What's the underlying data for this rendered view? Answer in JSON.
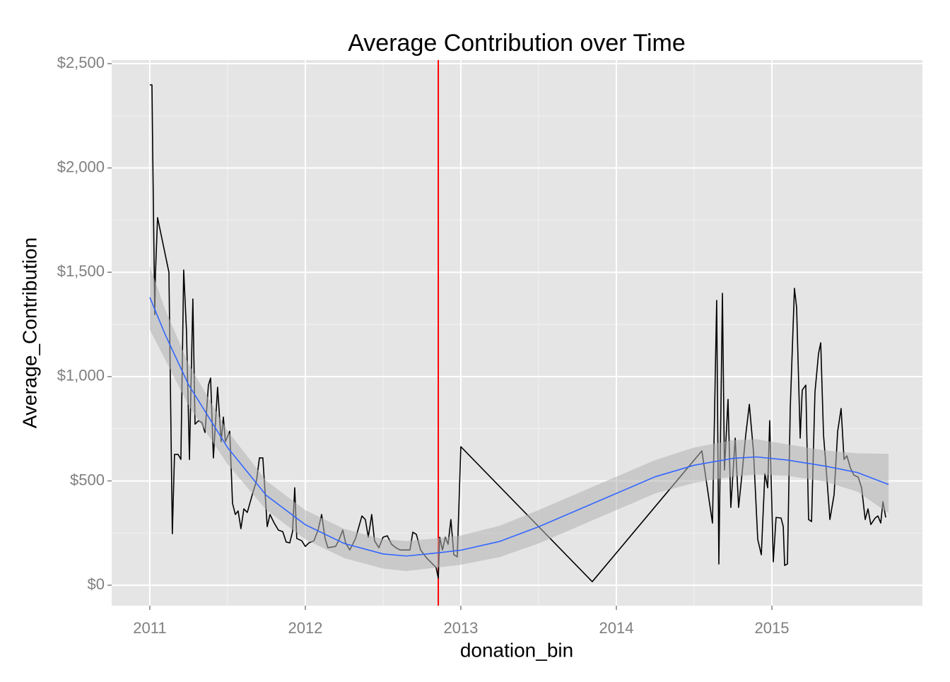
{
  "chart_data": {
    "type": "line",
    "title": "Average Contribution over Time",
    "x_label": "donation_bin",
    "y_label": "Average_Contribution",
    "xlim": [
      2010.755,
      2015.968
    ],
    "xticks": [
      2011,
      2012,
      2013,
      2014,
      2015
    ],
    "ylim": [
      -98,
      2517
    ],
    "yticks": [
      {
        "value": 0,
        "label": "$0"
      },
      {
        "value": 500,
        "label": "$500"
      },
      {
        "value": 1000,
        "label": "$1,000"
      },
      {
        "value": 1500,
        "label": "$1,500"
      },
      {
        "value": 2000,
        "label": "$2,000"
      },
      {
        "value": 2500,
        "label": "$2,500"
      }
    ],
    "grid": true,
    "series": [
      {
        "color": "#000000",
        "x": [
          2011.0,
          2011.014,
          2011.018,
          2011.032,
          2011.036,
          2011.05,
          2011.123,
          2011.145,
          2011.159,
          2011.182,
          2011.2,
          2011.218,
          2011.236,
          2011.255,
          2011.277,
          2011.291,
          2011.314,
          2011.336,
          2011.355,
          2011.377,
          2011.391,
          2011.409,
          2011.436,
          2011.459,
          2011.473,
          2011.486,
          2011.514,
          2011.532,
          2011.55,
          2011.568,
          2011.586,
          2011.605,
          2011.627,
          2011.659,
          2011.686,
          2011.705,
          2011.727,
          2011.755,
          2011.773,
          2011.8,
          2011.827,
          2011.855,
          2011.877,
          2011.9,
          2011.918,
          2011.932,
          2011.945,
          2011.977,
          2012.0,
          2012.023,
          2012.055,
          2012.082,
          2012.105,
          2012.127,
          2012.145,
          2012.195,
          2012.218,
          2012.241,
          2012.259,
          2012.286,
          2012.323,
          2012.364,
          2012.386,
          2012.405,
          2012.427,
          2012.445,
          2012.473,
          2012.5,
          2012.527,
          2012.555,
          2012.582,
          2012.609,
          2012.65,
          2012.673,
          2012.691,
          2012.714,
          2012.741,
          2012.782,
          2012.818,
          2012.841,
          2012.855,
          2012.864,
          2012.882,
          2012.9,
          2012.918,
          2012.936,
          2012.955,
          2012.977,
          2013.0,
          2013.845,
          2014.55,
          2014.618,
          2014.645,
          2014.659,
          2014.682,
          2014.695,
          2014.718,
          2014.736,
          2014.764,
          2014.786,
          2014.809,
          2014.832,
          2014.855,
          2014.882,
          2014.909,
          2014.932,
          2014.955,
          2014.973,
          2014.986,
          2015.009,
          2015.027,
          2015.059,
          2015.073,
          2015.082,
          2015.1,
          2015.118,
          2015.145,
          2015.159,
          2015.182,
          2015.195,
          2015.218,
          2015.236,
          2015.255,
          2015.277,
          2015.3,
          2015.314,
          2015.332,
          2015.355,
          2015.373,
          2015.4,
          2015.423,
          2015.445,
          2015.464,
          2015.482,
          2015.505,
          2015.527,
          2015.555,
          2015.577,
          2015.6,
          2015.618,
          2015.636,
          2015.664,
          2015.682,
          2015.7,
          2015.714,
          2015.732
        ],
        "values": [
          2398,
          2398,
          2127,
          1297,
          1484,
          1762,
          1500,
          247,
          627,
          627,
          603,
          1511,
          1219,
          603,
          1372,
          772,
          789,
          779,
          732,
          959,
          993,
          610,
          949,
          688,
          806,
          688,
          738,
          393,
          339,
          356,
          271,
          366,
          349,
          434,
          501,
          610,
          610,
          281,
          339,
          298,
          264,
          257,
          207,
          203,
          257,
          467,
          224,
          213,
          186,
          203,
          213,
          264,
          339,
          224,
          180,
          186,
          220,
          264,
          203,
          169,
          224,
          332,
          315,
          230,
          339,
          213,
          180,
          230,
          237,
          196,
          180,
          169,
          169,
          169,
          254,
          244,
          169,
          129,
          102,
          85,
          34,
          230,
          169,
          230,
          196,
          315,
          146,
          136,
          664,
          17,
          644,
          298,
          1365,
          102,
          1399,
          552,
          891,
          373,
          705,
          373,
          542,
          721,
          867,
          637,
          220,
          146,
          535,
          467,
          789,
          112,
          325,
          322,
          281,
          95,
          102,
          847,
          1423,
          1331,
          705,
          935,
          959,
          315,
          305,
          925,
          1111,
          1162,
          721,
          501,
          315,
          434,
          738,
          847,
          603,
          620,
          562,
          528,
          518,
          467,
          315,
          366,
          291,
          322,
          332,
          298,
          400,
          325
        ]
      }
    ],
    "smooth": {
      "color": "#3366ff",
      "band_color": "#b3b3b3",
      "x": [
        2011.0,
        2011.1,
        2011.25,
        2011.5,
        2011.75,
        2012.0,
        2012.25,
        2012.5,
        2012.65,
        2012.85,
        2013.0,
        2013.25,
        2013.5,
        2013.75,
        2014.0,
        2014.25,
        2014.5,
        2014.75,
        2014.9,
        2015.1,
        2015.35,
        2015.55,
        2015.75
      ],
      "values": [
        1380,
        1200,
        960,
        660,
        430,
        290,
        200,
        150,
        140,
        155,
        168,
        210,
        280,
        360,
        440,
        520,
        575,
        608,
        615,
        600,
        570,
        540,
        483
      ],
      "upper": [
        1530,
        1320,
        1060,
        740,
        500,
        360,
        270,
        220,
        212,
        225,
        238,
        285,
        360,
        440,
        520,
        600,
        660,
        695,
        700,
        675,
        645,
        632,
        630
      ],
      "lower": [
        1225,
        1080,
        860,
        580,
        360,
        220,
        130,
        80,
        68,
        85,
        98,
        135,
        200,
        280,
        360,
        440,
        490,
        521,
        530,
        525,
        495,
        448,
        345
      ]
    },
    "vline": {
      "value": 2012.855,
      "color": "#ff0000"
    }
  }
}
